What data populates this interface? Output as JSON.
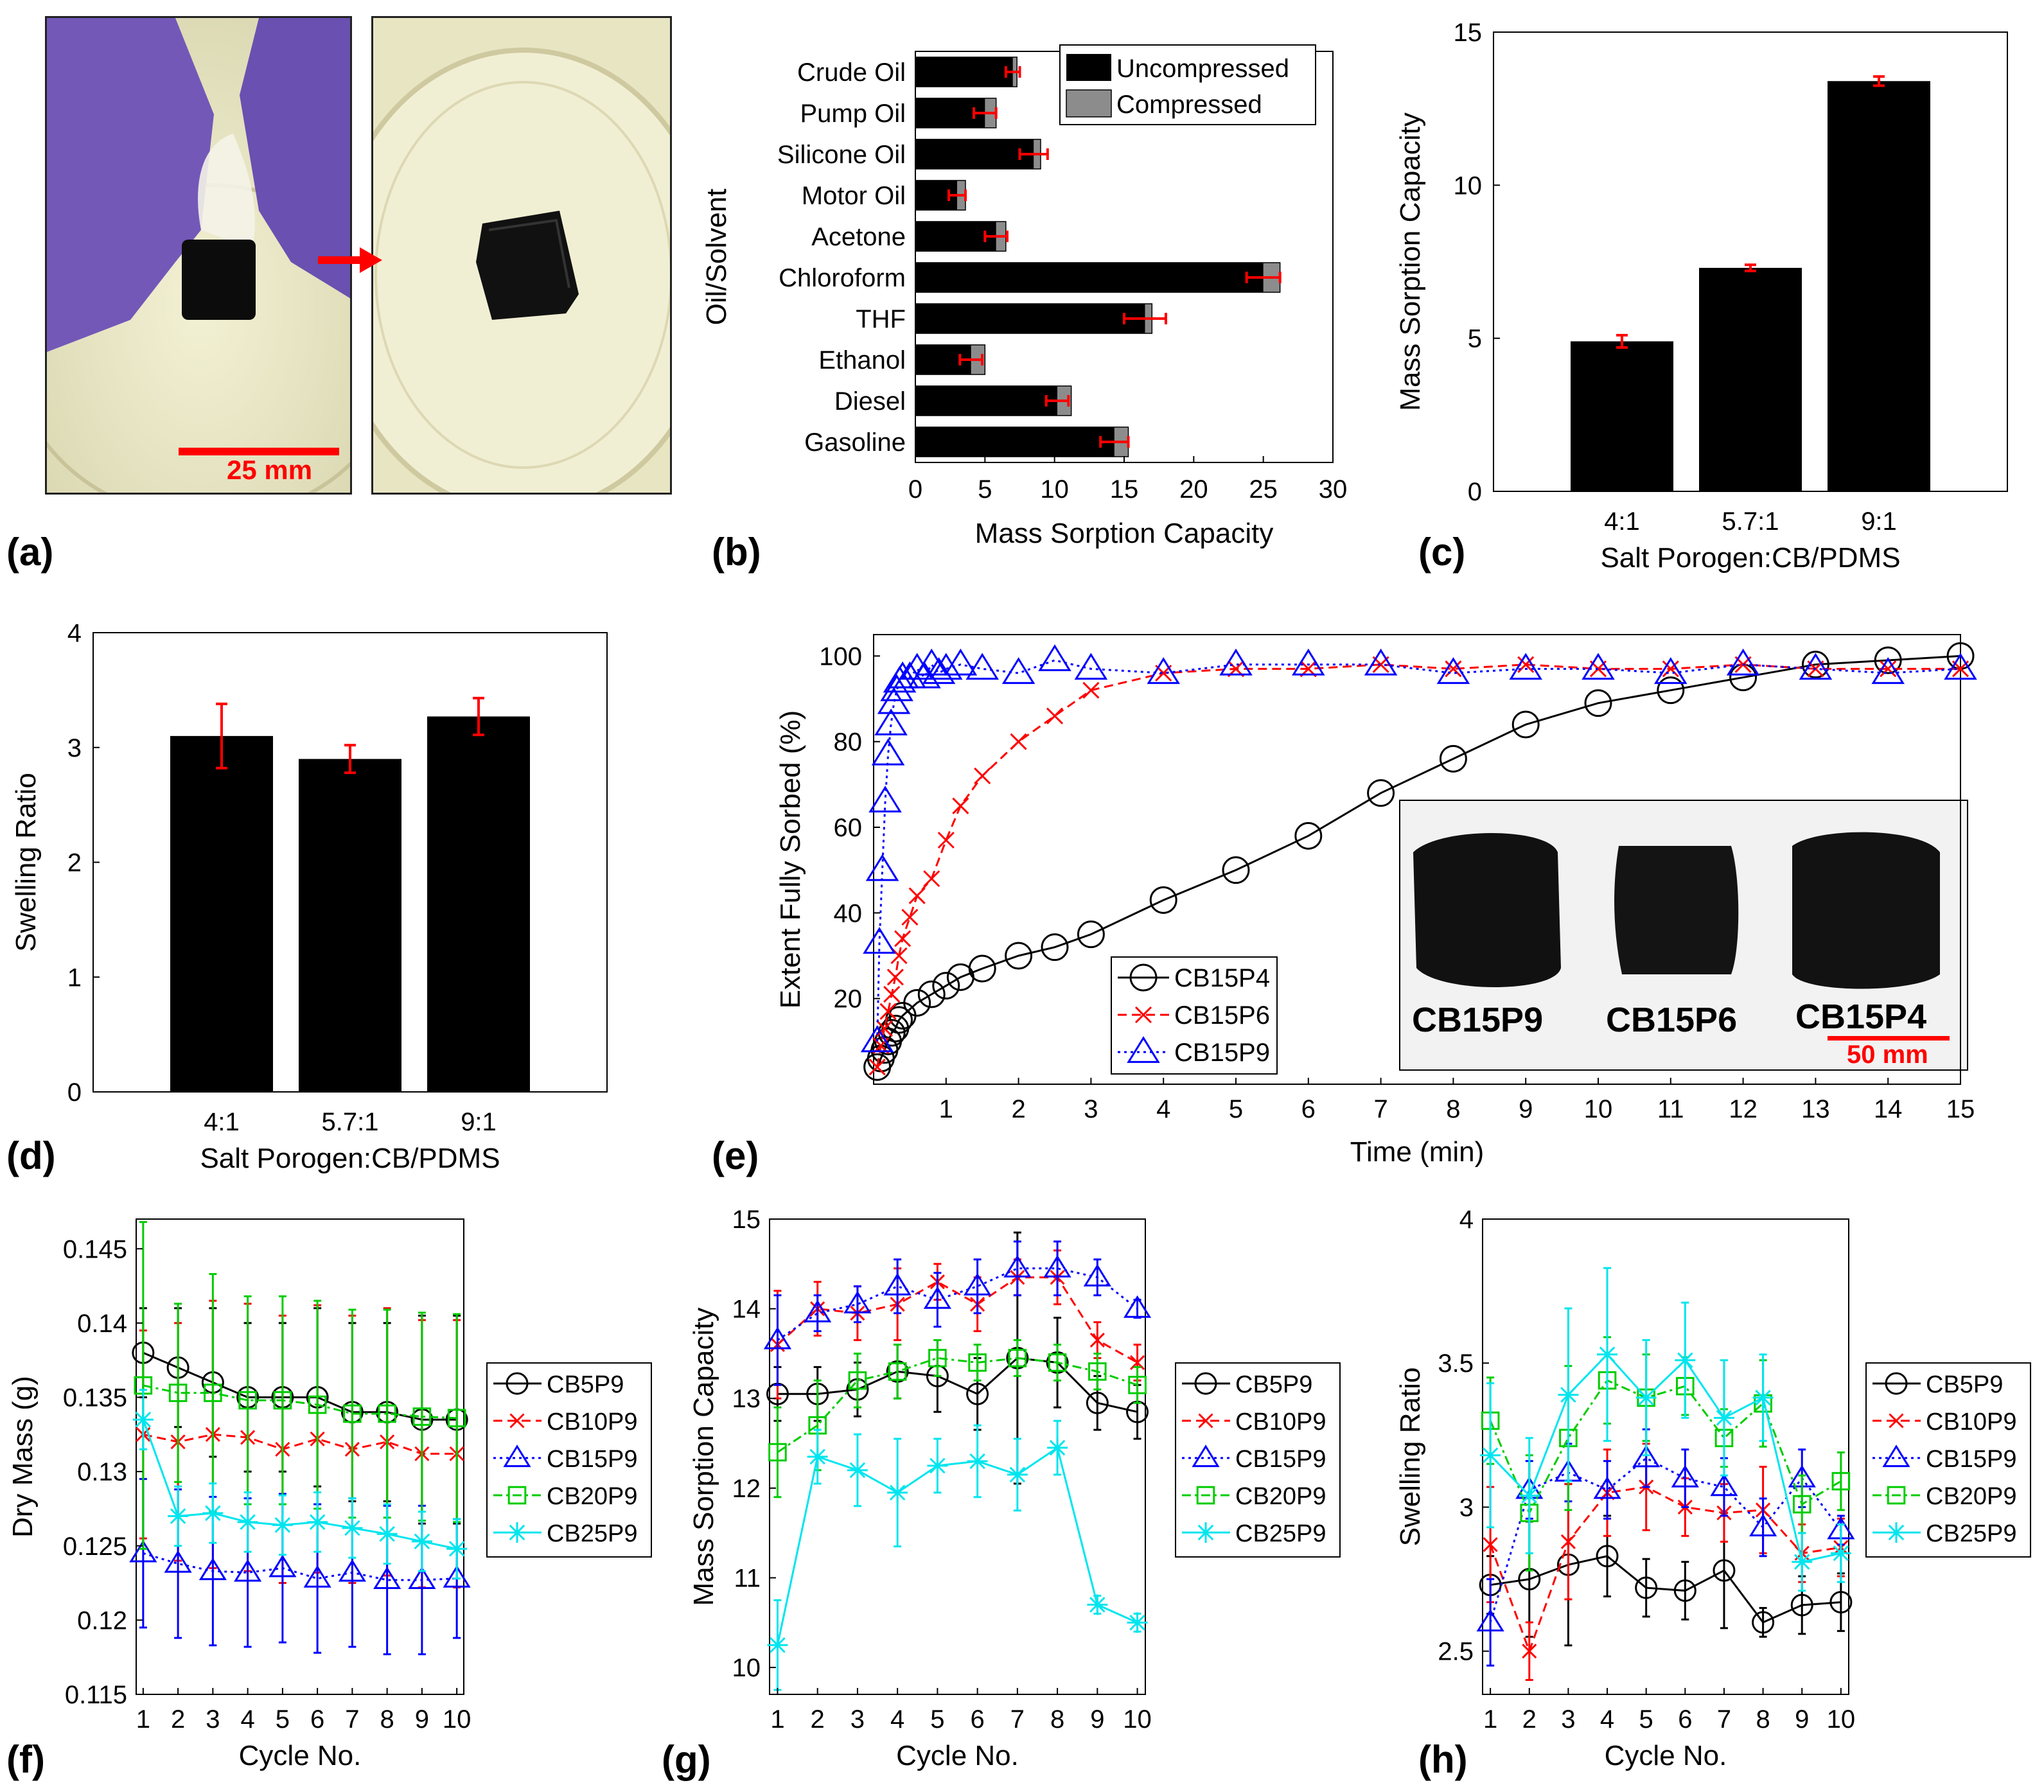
{
  "figure": {
    "panel_labels": [
      "(a)",
      "(b)",
      "(c)",
      "(d)",
      "(e)",
      "(f)",
      "(g)",
      "(h)"
    ],
    "scale_bar_a": "25 mm",
    "scale_bar_e": "50 mm",
    "inset_labels": [
      "CB15P9",
      "CB15P6",
      "CB15P4"
    ],
    "colors": {
      "black": "#000000",
      "gray": "#8c8c8c",
      "red": "#ff0000",
      "blue": "#0000ff",
      "green": "#00cc00",
      "cyan": "#00e5ee"
    }
  },
  "chart_data": [
    {
      "id": "b",
      "type": "bar",
      "orientation": "horizontal",
      "stacked_overlay": true,
      "ylabel": "Oil/Solvent",
      "xlabel": "Mass Sorption Capacity",
      "xlim": [
        0,
        30
      ],
      "xticks": [
        0,
        5,
        10,
        15,
        20,
        25,
        30
      ],
      "categories": [
        "Crude Oil",
        "Pump Oil",
        "Silicone Oil",
        "Motor Oil",
        "Acetone",
        "Chloroform",
        "THF",
        "Ethanol",
        "Diesel",
        "Gasoline"
      ],
      "series": [
        {
          "name": "Uncompressed",
          "values": [
            7.0,
            5.0,
            8.5,
            3.0,
            5.8,
            25.0,
            16.5,
            4.0,
            10.2,
            14.3
          ],
          "err": [
            0.5,
            0.8,
            1.0,
            0.6,
            0.8,
            1.2,
            1.5,
            0.8,
            0.8,
            1.0
          ]
        },
        {
          "name": "Compressed",
          "values": [
            7.3,
            5.8,
            9.0,
            3.6,
            6.5,
            26.2,
            17.0,
            5.0,
            11.2,
            15.3
          ]
        }
      ],
      "legend": [
        "Uncompressed",
        "Compressed"
      ]
    },
    {
      "id": "c",
      "type": "bar",
      "xlabel": "Salt Porogen:CB/PDMS",
      "ylabel": "Mass Sorption Capacity",
      "ylim": [
        0,
        15
      ],
      "yticks": [
        0,
        5,
        10,
        15
      ],
      "categories": [
        "4:1",
        "5.7:1",
        "9:1"
      ],
      "values": [
        4.9,
        7.3,
        13.4
      ],
      "err": [
        0.2,
        0.1,
        0.15
      ]
    },
    {
      "id": "d",
      "type": "bar",
      "xlabel": "Salt Porogen:CB/PDMS",
      "ylabel": "Swelling Ratio",
      "ylim": [
        0,
        4
      ],
      "yticks": [
        0,
        1,
        2,
        3,
        4
      ],
      "categories": [
        "4:1",
        "5.7:1",
        "9:1"
      ],
      "values": [
        3.1,
        2.9,
        3.27
      ],
      "err": [
        0.28,
        0.12,
        0.16
      ]
    },
    {
      "id": "e",
      "type": "line",
      "xlabel": "Time (min)",
      "ylabel": "Extent Fully Sorbed (%)",
      "xlim": [
        0,
        15
      ],
      "ylim": [
        0,
        105
      ],
      "xticks": [
        1,
        2,
        3,
        4,
        5,
        6,
        7,
        8,
        9,
        10,
        11,
        12,
        13,
        14,
        15
      ],
      "yticks": [
        20,
        40,
        60,
        80,
        100
      ],
      "series": [
        {
          "name": "CB15P4",
          "x": [
            0.05,
            0.1,
            0.15,
            0.2,
            0.25,
            0.3,
            0.35,
            0.4,
            0.6,
            0.8,
            1,
            1.2,
            1.5,
            2,
            2.5,
            3,
            4,
            5,
            6,
            7,
            8,
            9,
            10,
            11,
            12,
            13,
            14,
            15
          ],
          "y": [
            4,
            6,
            8,
            10,
            12,
            13,
            15,
            16,
            19,
            21,
            23,
            25,
            27,
            30,
            32,
            35,
            43,
            50,
            58,
            68,
            76,
            84,
            89,
            92,
            95,
            98,
            99,
            100
          ]
        },
        {
          "name": "CB15P6",
          "x": [
            0.05,
            0.1,
            0.15,
            0.2,
            0.25,
            0.3,
            0.35,
            0.4,
            0.5,
            0.6,
            0.8,
            1,
            1.2,
            1.5,
            2,
            2.5,
            3,
            4,
            5,
            6,
            7,
            8,
            9,
            10,
            11,
            12,
            13,
            14,
            15
          ],
          "y": [
            4,
            9,
            13,
            17,
            21,
            25,
            30,
            34,
            39,
            44,
            48,
            57,
            65,
            72,
            80,
            86,
            92,
            96,
            97,
            97,
            98,
            97,
            98,
            97,
            97,
            98,
            97,
            97,
            97
          ]
        },
        {
          "name": "CB15P9",
          "x": [
            0.05,
            0.08,
            0.12,
            0.16,
            0.2,
            0.24,
            0.28,
            0.32,
            0.36,
            0.4,
            0.5,
            0.6,
            0.7,
            0.8,
            0.9,
            1,
            1.2,
            1.5,
            2,
            2.5,
            3,
            4,
            5,
            6,
            7,
            8,
            9,
            10,
            11,
            12,
            13,
            14,
            15
          ],
          "y": [
            10,
            33,
            50,
            66,
            77,
            84,
            89,
            92,
            94,
            95,
            95,
            97,
            95,
            98,
            96,
            97,
            98,
            97,
            96,
            99,
            97,
            96,
            98,
            98,
            98,
            96,
            97,
            97,
            96,
            98,
            97,
            96,
            97
          ]
        }
      ],
      "legend": [
        "CB15P4",
        "CB15P6",
        "CB15P9"
      ]
    },
    {
      "id": "f",
      "type": "line",
      "xlabel": "Cycle No.",
      "ylabel": "Dry Mass (g)",
      "xlim": [
        0.8,
        10.2
      ],
      "ylim": [
        0.115,
        0.147
      ],
      "xticks": [
        1,
        2,
        3,
        4,
        5,
        6,
        7,
        8,
        9,
        10
      ],
      "yticks": [
        0.115,
        0.12,
        0.125,
        0.13,
        0.135,
        0.14,
        0.145
      ],
      "x": [
        1,
        2,
        3,
        4,
        5,
        6,
        7,
        8,
        9,
        10
      ],
      "series": [
        {
          "name": "CB5P9",
          "values": [
            0.138,
            0.137,
            0.136,
            0.135,
            0.135,
            0.135,
            0.134,
            0.134,
            0.1335,
            0.1335
          ],
          "err": [
            0.003,
            0.004,
            0.005,
            0.005,
            0.005,
            0.006,
            0.006,
            0.006,
            0.007,
            0.007
          ]
        },
        {
          "name": "CB10P9",
          "values": [
            0.1325,
            0.132,
            0.1325,
            0.1323,
            0.1315,
            0.1322,
            0.1315,
            0.132,
            0.1312,
            0.1312
          ],
          "err": [
            0.007,
            0.008,
            0.009,
            0.009,
            0.009,
            0.009,
            0.009,
            0.009,
            0.009,
            0.009
          ]
        },
        {
          "name": "CB15P9",
          "values": [
            0.1245,
            0.1238,
            0.1233,
            0.1232,
            0.1235,
            0.1228,
            0.1232,
            0.1227,
            0.1227,
            0.1228
          ],
          "err": [
            0.005,
            0.005,
            0.005,
            0.005,
            0.005,
            0.005,
            0.005,
            0.005,
            0.005,
            0.004
          ]
        },
        {
          "name": "CB20P9",
          "values": [
            0.1358,
            0.1353,
            0.1353,
            0.1348,
            0.1348,
            0.1345,
            0.1339,
            0.1339,
            0.1337,
            0.1336
          ],
          "err": [
            0.011,
            0.006,
            0.008,
            0.007,
            0.007,
            0.007,
            0.007,
            0.007,
            0.007,
            0.007
          ]
        },
        {
          "name": "CB25P9",
          "values": [
            0.1335,
            0.127,
            0.1272,
            0.1266,
            0.1264,
            0.1266,
            0.1262,
            0.1258,
            0.1253,
            0.1248
          ],
          "err": [
            0.002,
            0.002,
            0.002,
            0.002,
            0.002,
            0.002,
            0.002,
            0.002,
            0.002,
            0.002
          ]
        }
      ],
      "legend": [
        "CB5P9",
        "CB10P9",
        "CB15P9",
        "CB20P9",
        "CB25P9"
      ]
    },
    {
      "id": "g",
      "type": "line",
      "xlabel": "Cycle No.",
      "ylabel": "Mass Sorption Capacity",
      "xlim": [
        0.8,
        10.2
      ],
      "ylim": [
        9.7,
        15
      ],
      "xticks": [
        1,
        2,
        3,
        4,
        5,
        6,
        7,
        8,
        9,
        10
      ],
      "yticks": [
        10,
        11,
        12,
        13,
        14,
        15
      ],
      "x": [
        1,
        2,
        3,
        4,
        5,
        6,
        7,
        8,
        9,
        10
      ],
      "series": [
        {
          "name": "CB5P9",
          "values": [
            13.05,
            13.05,
            13.1,
            13.3,
            13.25,
            13.05,
            13.45,
            13.4,
            12.95,
            12.85
          ],
          "err": [
            0.3,
            0.3,
            0.3,
            0.3,
            0.4,
            0.4,
            1.4,
            0.5,
            0.3,
            0.3
          ]
        },
        {
          "name": "CB10P9",
          "values": [
            13.6,
            14.0,
            13.95,
            14.05,
            14.3,
            14.05,
            14.35,
            14.35,
            13.65,
            13.4
          ],
          "err": [
            0.6,
            0.3,
            0.3,
            0.4,
            0.2,
            0.3,
            0.2,
            0.3,
            0.2,
            0.2
          ]
        },
        {
          "name": "CB15P9",
          "values": [
            13.65,
            13.95,
            14.05,
            14.25,
            14.1,
            14.25,
            14.45,
            14.45,
            14.35,
            14.0
          ],
          "err": [
            0.5,
            0.2,
            0.2,
            0.3,
            0.3,
            0.3,
            0.3,
            0.3,
            0.2,
            0.1
          ]
        },
        {
          "name": "CB20P9",
          "values": [
            12.4,
            12.7,
            13.2,
            13.3,
            13.45,
            13.4,
            13.45,
            13.4,
            13.3,
            13.15
          ],
          "err": [
            0.5,
            0.5,
            0.3,
            0.3,
            0.2,
            0.2,
            0.2,
            0.2,
            0.2,
            0.2
          ]
        },
        {
          "name": "CB25P9",
          "values": [
            10.25,
            12.35,
            12.2,
            11.95,
            12.25,
            12.3,
            12.15,
            12.45,
            10.7,
            10.5
          ],
          "err": [
            0.5,
            0.3,
            0.4,
            0.6,
            0.3,
            0.4,
            0.4,
            0.3,
            0.1,
            0.1
          ]
        }
      ],
      "legend": [
        "CB5P9",
        "CB10P9",
        "CB15P9",
        "CB20P9",
        "CB25P9"
      ]
    },
    {
      "id": "h",
      "type": "line",
      "xlabel": "Cycle No.",
      "ylabel": "Swelling Ratio",
      "xlim": [
        0.8,
        10.2
      ],
      "ylim": [
        2.35,
        4.0
      ],
      "xticks": [
        1,
        2,
        3,
        4,
        5,
        6,
        7,
        8,
        9,
        10
      ],
      "yticks": [
        2.5,
        3,
        3.5,
        4
      ],
      "x": [
        1,
        2,
        3,
        4,
        5,
        6,
        7,
        8,
        9,
        10
      ],
      "series": [
        {
          "name": "CB5P9",
          "values": [
            2.73,
            2.75,
            2.8,
            2.83,
            2.72,
            2.71,
            2.78,
            2.6,
            2.66,
            2.67
          ],
          "err": [
            0.1,
            0.2,
            0.28,
            0.14,
            0.1,
            0.1,
            0.2,
            0.05,
            0.1,
            0.1
          ]
        },
        {
          "name": "CB10P9",
          "values": [
            2.87,
            2.5,
            2.88,
            3.05,
            3.07,
            3.0,
            2.98,
            2.99,
            2.84,
            2.86
          ],
          "err": [
            0.2,
            0.1,
            0.2,
            0.15,
            0.15,
            0.1,
            0.1,
            0.15,
            0.1,
            0.1
          ]
        },
        {
          "name": "CB15P9",
          "values": [
            2.6,
            3.06,
            3.12,
            3.06,
            3.17,
            3.1,
            3.07,
            2.93,
            3.1,
            2.92
          ],
          "err": [
            0.15,
            0.1,
            0.1,
            0.1,
            0.1,
            0.1,
            0.1,
            0.1,
            0.1,
            0.05
          ]
        },
        {
          "name": "CB20P9",
          "values": [
            3.3,
            2.98,
            3.24,
            3.44,
            3.38,
            3.42,
            3.24,
            3.36,
            3.01,
            3.09
          ],
          "err": [
            0.15,
            0.2,
            0.25,
            0.15,
            0.15,
            0.1,
            0.1,
            0.15,
            0.1,
            0.1
          ]
        },
        {
          "name": "CB25P9",
          "values": [
            3.18,
            3.04,
            3.39,
            3.53,
            3.38,
            3.51,
            3.31,
            3.38,
            2.81,
            2.84
          ],
          "err": [
            0.25,
            0.2,
            0.3,
            0.3,
            0.2,
            0.2,
            0.2,
            0.15,
            0.1,
            0.1
          ]
        }
      ],
      "legend": [
        "CB5P9",
        "CB10P9",
        "CB15P9",
        "CB20P9",
        "CB25P9"
      ]
    }
  ]
}
